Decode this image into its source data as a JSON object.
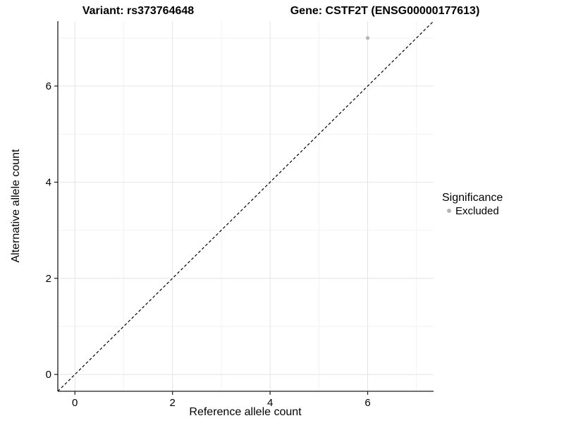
{
  "chart_data": {
    "type": "scatter",
    "title_left": "Variant: rs373764648",
    "title_right": "Gene: CSTF2T (ENSG00000177613)",
    "xlabel": "Reference allele count",
    "ylabel": "Alternative allele count",
    "xlim": [
      -0.35,
      7.35
    ],
    "ylim": [
      -0.35,
      7.35
    ],
    "xticks": [
      0,
      2,
      4,
      6
    ],
    "yticks": [
      0,
      2,
      4,
      6
    ],
    "xminor": [
      1,
      3,
      5,
      7
    ],
    "yminor": [
      1,
      3,
      5,
      7
    ],
    "grid": "on",
    "points": [
      {
        "x": 6,
        "y": 7,
        "series": "Excluded"
      }
    ],
    "identity_line": {
      "style": "dashed",
      "x1": -0.35,
      "y1": -0.35,
      "x2": 7.35,
      "y2": 7.35
    },
    "legend": {
      "title": "Significance",
      "position": "right",
      "entries": [
        {
          "label": "Excluded",
          "color": "#b5b5b5",
          "marker": "circle"
        }
      ]
    },
    "colors": {
      "point": "#b5b5b5",
      "grid_major": "#e4e4e4",
      "grid_minor": "#f2f2f2",
      "axis": "#1a1a1a",
      "dashed_line": "#000000"
    }
  }
}
